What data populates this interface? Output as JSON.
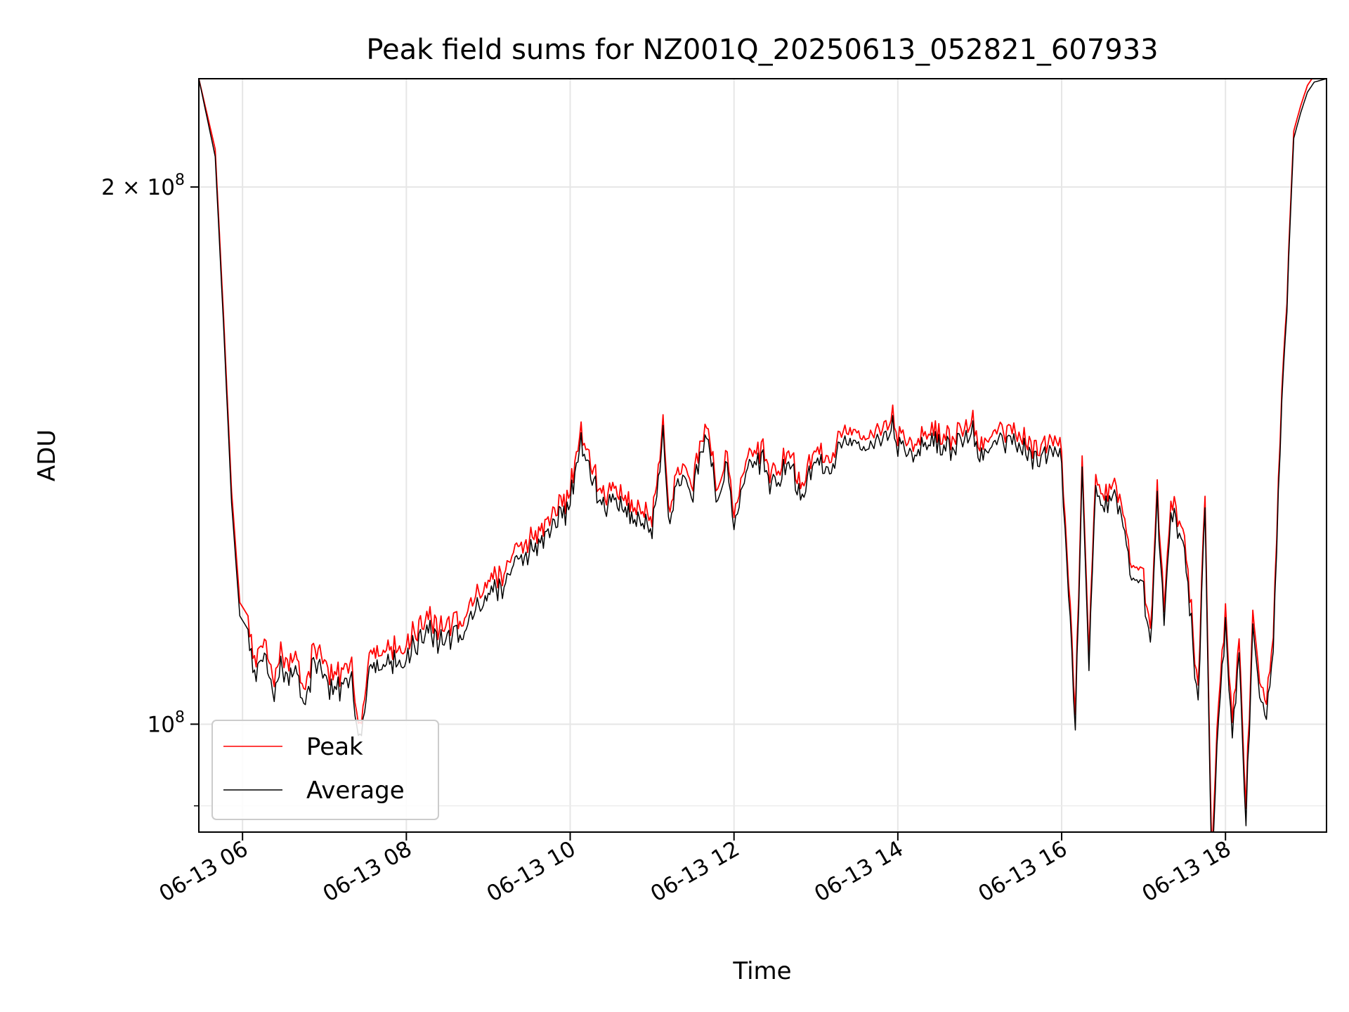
{
  "chart_data": {
    "type": "line",
    "title": "Peak field sums for NZ001Q_20250613_052821_607933",
    "xlabel": "Time",
    "ylabel": "ADU",
    "y_scale": "log",
    "grid": true,
    "legend_position": "lower-left",
    "x_range": [
      "2025-06-13 05:28",
      "2025-06-13 19:14"
    ],
    "ylim": [
      87000000,
      230000000
    ],
    "x_ticks": [
      {
        "value": "2025-06-13 06:00",
        "label": "06-13 06"
      },
      {
        "value": "2025-06-13 08:00",
        "label": "06-13 08"
      },
      {
        "value": "2025-06-13 10:00",
        "label": "06-13 10"
      },
      {
        "value": "2025-06-13 12:00",
        "label": "06-13 12"
      },
      {
        "value": "2025-06-13 14:00",
        "label": "06-13 14"
      },
      {
        "value": "2025-06-13 16:00",
        "label": "06-13 16"
      },
      {
        "value": "2025-06-13 18:00",
        "label": "06-13 18"
      }
    ],
    "y_ticks_major": [
      {
        "value": 100000000,
        "base": "10",
        "exp": "8"
      },
      {
        "value": 200000000,
        "base": "2 × 10",
        "exp": "8"
      }
    ],
    "y_ticks_minor": [
      90000000
    ],
    "series": [
      {
        "name": "Peak",
        "color": "#ff0000",
        "x": [
          "2025-06-13 05:28",
          "2025-06-13 05:40",
          "2025-06-13 05:46",
          "2025-06-13 05:52",
          "2025-06-13 05:58",
          "2025-06-13 06:04",
          "2025-06-13 06:10",
          "2025-06-13 06:16",
          "2025-06-13 06:22",
          "2025-06-13 06:28",
          "2025-06-13 06:34",
          "2025-06-13 06:40",
          "2025-06-13 06:46",
          "2025-06-13 06:52",
          "2025-06-13 07:00",
          "2025-06-13 07:10",
          "2025-06-13 07:20",
          "2025-06-13 07:26",
          "2025-06-13 07:34",
          "2025-06-13 07:42",
          "2025-06-13 07:50",
          "2025-06-13 08:00",
          "2025-06-13 08:15",
          "2025-06-13 08:30",
          "2025-06-13 08:45",
          "2025-06-13 09:00",
          "2025-06-13 09:15",
          "2025-06-13 09:30",
          "2025-06-13 09:45",
          "2025-06-13 10:00",
          "2025-06-13 10:08",
          "2025-06-13 10:15",
          "2025-06-13 10:22",
          "2025-06-13 10:30",
          "2025-06-13 10:45",
          "2025-06-13 11:00",
          "2025-06-13 11:08",
          "2025-06-13 11:12",
          "2025-06-13 11:20",
          "2025-06-13 11:30",
          "2025-06-13 11:40",
          "2025-06-13 11:48",
          "2025-06-13 11:55",
          "2025-06-13 12:00",
          "2025-06-13 12:10",
          "2025-06-13 12:20",
          "2025-06-13 12:30",
          "2025-06-13 12:40",
          "2025-06-13 12:50",
          "2025-06-13 13:00",
          "2025-06-13 13:10",
          "2025-06-13 13:20",
          "2025-06-13 13:30",
          "2025-06-13 13:40",
          "2025-06-13 13:50",
          "2025-06-13 13:55",
          "2025-06-13 14:00",
          "2025-06-13 14:10",
          "2025-06-13 14:20",
          "2025-06-13 14:30",
          "2025-06-13 14:40",
          "2025-06-13 14:50",
          "2025-06-13 14:55",
          "2025-06-13 15:00",
          "2025-06-13 15:10",
          "2025-06-13 15:20",
          "2025-06-13 15:30",
          "2025-06-13 15:40",
          "2025-06-13 15:50",
          "2025-06-13 16:00",
          "2025-06-13 16:10",
          "2025-06-13 16:15",
          "2025-06-13 16:20",
          "2025-06-13 16:25",
          "2025-06-13 16:30",
          "2025-06-13 16:40",
          "2025-06-13 16:50",
          "2025-06-13 17:00",
          "2025-06-13 17:05",
          "2025-06-13 17:10",
          "2025-06-13 17:15",
          "2025-06-13 17:20",
          "2025-06-13 17:30",
          "2025-06-13 17:40",
          "2025-06-13 17:45",
          "2025-06-13 17:50",
          "2025-06-13 17:55",
          "2025-06-13 18:00",
          "2025-06-13 18:05",
          "2025-06-13 18:10",
          "2025-06-13 18:15",
          "2025-06-13 18:20",
          "2025-06-13 18:25",
          "2025-06-13 18:30",
          "2025-06-13 18:35",
          "2025-06-13 18:40",
          "2025-06-13 18:45",
          "2025-06-13 18:50",
          "2025-06-13 18:55",
          "2025-06-13 19:00",
          "2025-06-13 19:05",
          "2025-06-13 19:14"
        ],
        "y": [
          230000000,
          210000000,
          170000000,
          135000000,
          117000000,
          115000000,
          107000000,
          112000000,
          105000000,
          110000000,
          108000000,
          109000000,
          104000000,
          110000000,
          108000000,
          106000000,
          107000000,
          100000000,
          109000000,
          110000000,
          110000000,
          111000000,
          115000000,
          113000000,
          116000000,
          120000000,
          123000000,
          127000000,
          130000000,
          135000000,
          145000000,
          140000000,
          134000000,
          136000000,
          133000000,
          131000000,
          146000000,
          132000000,
          139000000,
          137000000,
          148000000,
          135000000,
          142000000,
          130000000,
          140000000,
          143000000,
          137000000,
          143000000,
          136000000,
          142000000,
          140000000,
          146000000,
          145000000,
          145000000,
          148000000,
          150000000,
          145000000,
          143000000,
          146000000,
          145000000,
          145000000,
          147000000,
          149000000,
          143000000,
          145000000,
          146000000,
          146000000,
          143000000,
          144000000,
          143000000,
          102000000,
          140000000,
          110000000,
          140000000,
          133000000,
          136000000,
          125000000,
          121000000,
          112000000,
          136000000,
          115000000,
          135000000,
          126000000,
          105000000,
          135000000,
          85000000,
          103000000,
          115000000,
          100000000,
          112000000,
          90000000,
          115000000,
          106000000,
          103000000,
          112000000,
          145000000,
          175000000,
          215000000,
          222000000,
          228000000,
          231000000,
          232000000
        ]
      },
      {
        "name": "Average",
        "color": "#000000",
        "x": [
          "2025-06-13 05:28",
          "2025-06-13 05:40",
          "2025-06-13 05:46",
          "2025-06-13 05:52",
          "2025-06-13 05:58",
          "2025-06-13 06:04",
          "2025-06-13 06:10",
          "2025-06-13 06:16",
          "2025-06-13 06:22",
          "2025-06-13 06:28",
          "2025-06-13 06:34",
          "2025-06-13 06:40",
          "2025-06-13 06:46",
          "2025-06-13 06:52",
          "2025-06-13 07:00",
          "2025-06-13 07:10",
          "2025-06-13 07:20",
          "2025-06-13 07:26",
          "2025-06-13 07:34",
          "2025-06-13 07:42",
          "2025-06-13 07:50",
          "2025-06-13 08:00",
          "2025-06-13 08:15",
          "2025-06-13 08:30",
          "2025-06-13 08:45",
          "2025-06-13 09:00",
          "2025-06-13 09:15",
          "2025-06-13 09:30",
          "2025-06-13 09:45",
          "2025-06-13 10:00",
          "2025-06-13 10:08",
          "2025-06-13 10:15",
          "2025-06-13 10:22",
          "2025-06-13 10:30",
          "2025-06-13 10:45",
          "2025-06-13 11:00",
          "2025-06-13 11:08",
          "2025-06-13 11:12",
          "2025-06-13 11:20",
          "2025-06-13 11:30",
          "2025-06-13 11:40",
          "2025-06-13 11:48",
          "2025-06-13 11:55",
          "2025-06-13 12:00",
          "2025-06-13 12:10",
          "2025-06-13 12:20",
          "2025-06-13 12:30",
          "2025-06-13 12:40",
          "2025-06-13 12:50",
          "2025-06-13 13:00",
          "2025-06-13 13:10",
          "2025-06-13 13:20",
          "2025-06-13 13:30",
          "2025-06-13 13:40",
          "2025-06-13 13:50",
          "2025-06-13 13:55",
          "2025-06-13 14:00",
          "2025-06-13 14:10",
          "2025-06-13 14:20",
          "2025-06-13 14:30",
          "2025-06-13 14:40",
          "2025-06-13 14:50",
          "2025-06-13 14:55",
          "2025-06-13 15:00",
          "2025-06-13 15:10",
          "2025-06-13 15:20",
          "2025-06-13 15:30",
          "2025-06-13 15:40",
          "2025-06-13 15:50",
          "2025-06-13 16:00",
          "2025-06-13 16:10",
          "2025-06-13 16:15",
          "2025-06-13 16:20",
          "2025-06-13 16:25",
          "2025-06-13 16:30",
          "2025-06-13 16:40",
          "2025-06-13 16:50",
          "2025-06-13 17:00",
          "2025-06-13 17:05",
          "2025-06-13 17:10",
          "2025-06-13 17:15",
          "2025-06-13 17:20",
          "2025-06-13 17:30",
          "2025-06-13 17:40",
          "2025-06-13 17:45",
          "2025-06-13 17:50",
          "2025-06-13 17:55",
          "2025-06-13 18:00",
          "2025-06-13 18:05",
          "2025-06-13 18:10",
          "2025-06-13 18:15",
          "2025-06-13 18:20",
          "2025-06-13 18:25",
          "2025-06-13 18:30",
          "2025-06-13 18:35",
          "2025-06-13 18:40",
          "2025-06-13 18:45",
          "2025-06-13 18:50",
          "2025-06-13 18:55",
          "2025-06-13 19:00",
          "2025-06-13 19:05",
          "2025-06-13 19:14"
        ],
        "y": [
          230000000,
          208000000,
          168000000,
          133000000,
          115000000,
          113000000,
          105000000,
          110000000,
          103000000,
          108000000,
          106000000,
          107000000,
          102000000,
          108000000,
          106000000,
          104000000,
          105000000,
          98500000,
          107000000,
          108000000,
          108000000,
          109000000,
          113000000,
          111000000,
          114000000,
          118000000,
          121000000,
          125000000,
          128000000,
          133000000,
          143000000,
          138000000,
          132000000,
          134000000,
          131000000,
          129000000,
          144000000,
          130000000,
          137000000,
          135000000,
          146000000,
          133000000,
          140000000,
          128000000,
          138000000,
          141000000,
          135000000,
          141000000,
          134000000,
          140000000,
          138000000,
          144000000,
          143000000,
          143000000,
          146000000,
          148000000,
          143000000,
          141000000,
          144000000,
          143000000,
          143000000,
          145000000,
          147000000,
          141000000,
          143000000,
          144000000,
          144000000,
          141000000,
          142000000,
          141000000,
          100000000,
          138000000,
          108000000,
          138000000,
          131000000,
          134000000,
          123000000,
          119000000,
          110000000,
          134000000,
          113000000,
          133000000,
          124000000,
          103000000,
          133000000,
          83000000,
          101000000,
          113000000,
          98000000,
          110000000,
          88000000,
          113000000,
          104000000,
          101000000,
          110000000,
          143000000,
          173000000,
          213000000,
          220000000,
          226000000,
          229000000,
          230000000
        ]
      }
    ]
  }
}
